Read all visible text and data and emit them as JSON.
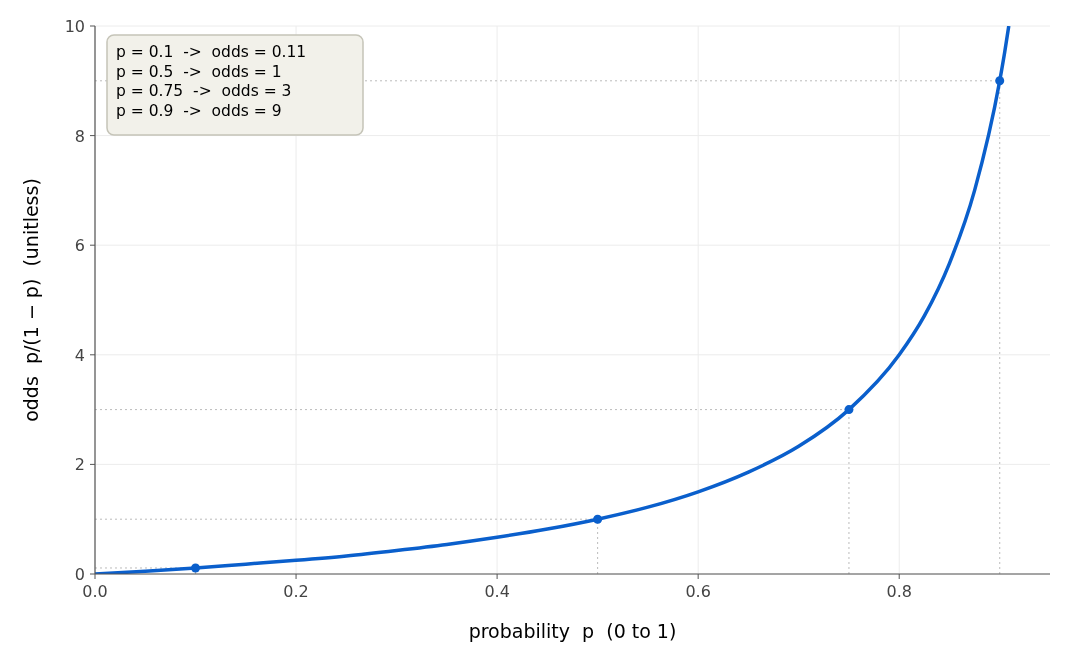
{
  "chart_data": {
    "type": "line",
    "xlabel": "probability  p  (0 to 1)",
    "ylabel": "odds  p/(1 − p)  (unitless)",
    "xlim": [
      0,
      0.95
    ],
    "ylim": [
      0,
      10
    ],
    "xticks": [
      {
        "value": 0,
        "label": "0.0"
      },
      0.2,
      0.4,
      0.6,
      0.8
    ],
    "yticks": [
      0,
      2,
      4,
      6,
      8,
      10
    ],
    "grid": true,
    "annotations": [
      "p = 0.1  ->  odds = 0.11",
      "p = 0.5  ->  odds = 1",
      "p = 0.75  ->  odds = 3",
      "p = 0.9  ->  odds = 9"
    ],
    "series": [
      {
        "color": "#bbbbbb",
        "marker": "none",
        "line_style": "dotted",
        "x": [
          0,
          0.1
        ],
        "values": [
          0.11,
          0.11
        ]
      },
      {
        "color": "#bbbbbb",
        "marker": "none",
        "line_style": "dotted",
        "x": [
          0.1,
          0.1
        ],
        "values": [
          0,
          0.11
        ]
      },
      {
        "color": "#bbbbbb",
        "marker": "none",
        "line_style": "dotted",
        "x": [
          0,
          0.5
        ],
        "values": [
          1,
          1
        ]
      },
      {
        "color": "#bbbbbb",
        "marker": "none",
        "line_style": "dotted",
        "x": [
          0.5,
          0.5
        ],
        "values": [
          0,
          1
        ]
      },
      {
        "color": "#bbbbbb",
        "marker": "none",
        "line_style": "dotted",
        "x": [
          0,
          0.75
        ],
        "values": [
          3,
          3
        ]
      },
      {
        "color": "#bbbbbb",
        "marker": "none",
        "line_style": "dotted",
        "x": [
          0.75,
          0.75
        ],
        "values": [
          0,
          3
        ]
      },
      {
        "color": "#bbbbbb",
        "marker": "none",
        "line_style": "dotted",
        "x": [
          0,
          0.9
        ],
        "values": [
          9,
          9
        ]
      },
      {
        "color": "#bbbbbb",
        "marker": "none",
        "line_style": "dotted",
        "x": [
          0.9,
          0.9
        ],
        "values": [
          0,
          9
        ]
      },
      {
        "color": "#0a5fcc",
        "marker": "none",
        "x": [
          0,
          0.05,
          0.1,
          0.15,
          0.2,
          0.25,
          0.3,
          0.35,
          0.4,
          0.45,
          0.5,
          0.55,
          0.6,
          0.65,
          0.7,
          0.75,
          0.8,
          0.825,
          0.85,
          0.875,
          0.9,
          0.905,
          0.909
        ],
        "values": [
          0,
          0.05,
          0.11,
          0.18,
          0.25,
          0.33,
          0.43,
          0.54,
          0.67,
          0.82,
          1,
          1.22,
          1.5,
          1.86,
          2.33,
          3,
          4,
          4.71,
          5.67,
          7,
          9,
          9.53,
          10
        ]
      },
      {
        "type": "scatter",
        "color": "#0a5fcc",
        "marker": "circle",
        "x": [
          0.1,
          0.5,
          0.75,
          0.9
        ],
        "values": [
          0.11,
          1,
          3,
          9
        ]
      }
    ]
  }
}
